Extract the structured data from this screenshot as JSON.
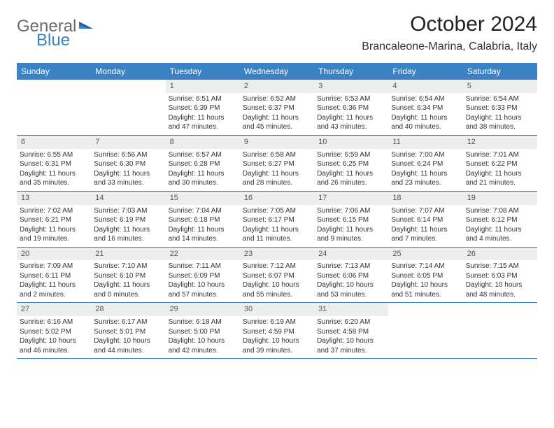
{
  "logo": {
    "part1": "General",
    "part2": "Blue"
  },
  "title": "October 2024",
  "location": "Brancaleone-Marina, Calabria, Italy",
  "colors": {
    "header_bg": "#3b82c4",
    "header_text": "#ffffff",
    "daynum_bg": "#eceded",
    "logo_gray": "#6b6b6b",
    "logo_blue": "#3b82c4"
  },
  "dow": [
    "Sunday",
    "Monday",
    "Tuesday",
    "Wednesday",
    "Thursday",
    "Friday",
    "Saturday"
  ],
  "weeks": [
    [
      {
        "blank": true
      },
      {
        "blank": true
      },
      {
        "num": "1",
        "sunrise": "Sunrise: 6:51 AM",
        "sunset": "Sunset: 6:39 PM",
        "daylight": "Daylight: 11 hours and 47 minutes."
      },
      {
        "num": "2",
        "sunrise": "Sunrise: 6:52 AM",
        "sunset": "Sunset: 6:37 PM",
        "daylight": "Daylight: 11 hours and 45 minutes."
      },
      {
        "num": "3",
        "sunrise": "Sunrise: 6:53 AM",
        "sunset": "Sunset: 6:36 PM",
        "daylight": "Daylight: 11 hours and 43 minutes."
      },
      {
        "num": "4",
        "sunrise": "Sunrise: 6:54 AM",
        "sunset": "Sunset: 6:34 PM",
        "daylight": "Daylight: 11 hours and 40 minutes."
      },
      {
        "num": "5",
        "sunrise": "Sunrise: 6:54 AM",
        "sunset": "Sunset: 6:33 PM",
        "daylight": "Daylight: 11 hours and 38 minutes."
      }
    ],
    [
      {
        "num": "6",
        "sunrise": "Sunrise: 6:55 AM",
        "sunset": "Sunset: 6:31 PM",
        "daylight": "Daylight: 11 hours and 35 minutes."
      },
      {
        "num": "7",
        "sunrise": "Sunrise: 6:56 AM",
        "sunset": "Sunset: 6:30 PM",
        "daylight": "Daylight: 11 hours and 33 minutes."
      },
      {
        "num": "8",
        "sunrise": "Sunrise: 6:57 AM",
        "sunset": "Sunset: 6:28 PM",
        "daylight": "Daylight: 11 hours and 30 minutes."
      },
      {
        "num": "9",
        "sunrise": "Sunrise: 6:58 AM",
        "sunset": "Sunset: 6:27 PM",
        "daylight": "Daylight: 11 hours and 28 minutes."
      },
      {
        "num": "10",
        "sunrise": "Sunrise: 6:59 AM",
        "sunset": "Sunset: 6:25 PM",
        "daylight": "Daylight: 11 hours and 26 minutes."
      },
      {
        "num": "11",
        "sunrise": "Sunrise: 7:00 AM",
        "sunset": "Sunset: 6:24 PM",
        "daylight": "Daylight: 11 hours and 23 minutes."
      },
      {
        "num": "12",
        "sunrise": "Sunrise: 7:01 AM",
        "sunset": "Sunset: 6:22 PM",
        "daylight": "Daylight: 11 hours and 21 minutes."
      }
    ],
    [
      {
        "num": "13",
        "sunrise": "Sunrise: 7:02 AM",
        "sunset": "Sunset: 6:21 PM",
        "daylight": "Daylight: 11 hours and 19 minutes."
      },
      {
        "num": "14",
        "sunrise": "Sunrise: 7:03 AM",
        "sunset": "Sunset: 6:19 PM",
        "daylight": "Daylight: 11 hours and 16 minutes."
      },
      {
        "num": "15",
        "sunrise": "Sunrise: 7:04 AM",
        "sunset": "Sunset: 6:18 PM",
        "daylight": "Daylight: 11 hours and 14 minutes."
      },
      {
        "num": "16",
        "sunrise": "Sunrise: 7:05 AM",
        "sunset": "Sunset: 6:17 PM",
        "daylight": "Daylight: 11 hours and 11 minutes."
      },
      {
        "num": "17",
        "sunrise": "Sunrise: 7:06 AM",
        "sunset": "Sunset: 6:15 PM",
        "daylight": "Daylight: 11 hours and 9 minutes."
      },
      {
        "num": "18",
        "sunrise": "Sunrise: 7:07 AM",
        "sunset": "Sunset: 6:14 PM",
        "daylight": "Daylight: 11 hours and 7 minutes."
      },
      {
        "num": "19",
        "sunrise": "Sunrise: 7:08 AM",
        "sunset": "Sunset: 6:12 PM",
        "daylight": "Daylight: 11 hours and 4 minutes."
      }
    ],
    [
      {
        "num": "20",
        "sunrise": "Sunrise: 7:09 AM",
        "sunset": "Sunset: 6:11 PM",
        "daylight": "Daylight: 11 hours and 2 minutes."
      },
      {
        "num": "21",
        "sunrise": "Sunrise: 7:10 AM",
        "sunset": "Sunset: 6:10 PM",
        "daylight": "Daylight: 11 hours and 0 minutes."
      },
      {
        "num": "22",
        "sunrise": "Sunrise: 7:11 AM",
        "sunset": "Sunset: 6:09 PM",
        "daylight": "Daylight: 10 hours and 57 minutes."
      },
      {
        "num": "23",
        "sunrise": "Sunrise: 7:12 AM",
        "sunset": "Sunset: 6:07 PM",
        "daylight": "Daylight: 10 hours and 55 minutes."
      },
      {
        "num": "24",
        "sunrise": "Sunrise: 7:13 AM",
        "sunset": "Sunset: 6:06 PM",
        "daylight": "Daylight: 10 hours and 53 minutes."
      },
      {
        "num": "25",
        "sunrise": "Sunrise: 7:14 AM",
        "sunset": "Sunset: 6:05 PM",
        "daylight": "Daylight: 10 hours and 51 minutes."
      },
      {
        "num": "26",
        "sunrise": "Sunrise: 7:15 AM",
        "sunset": "Sunset: 6:03 PM",
        "daylight": "Daylight: 10 hours and 48 minutes."
      }
    ],
    [
      {
        "num": "27",
        "sunrise": "Sunrise: 6:16 AM",
        "sunset": "Sunset: 5:02 PM",
        "daylight": "Daylight: 10 hours and 46 minutes."
      },
      {
        "num": "28",
        "sunrise": "Sunrise: 6:17 AM",
        "sunset": "Sunset: 5:01 PM",
        "daylight": "Daylight: 10 hours and 44 minutes."
      },
      {
        "num": "29",
        "sunrise": "Sunrise: 6:18 AM",
        "sunset": "Sunset: 5:00 PM",
        "daylight": "Daylight: 10 hours and 42 minutes."
      },
      {
        "num": "30",
        "sunrise": "Sunrise: 6:19 AM",
        "sunset": "Sunset: 4:59 PM",
        "daylight": "Daylight: 10 hours and 39 minutes."
      },
      {
        "num": "31",
        "sunrise": "Sunrise: 6:20 AM",
        "sunset": "Sunset: 4:58 PM",
        "daylight": "Daylight: 10 hours and 37 minutes."
      },
      {
        "blank": true
      },
      {
        "blank": true
      }
    ]
  ]
}
